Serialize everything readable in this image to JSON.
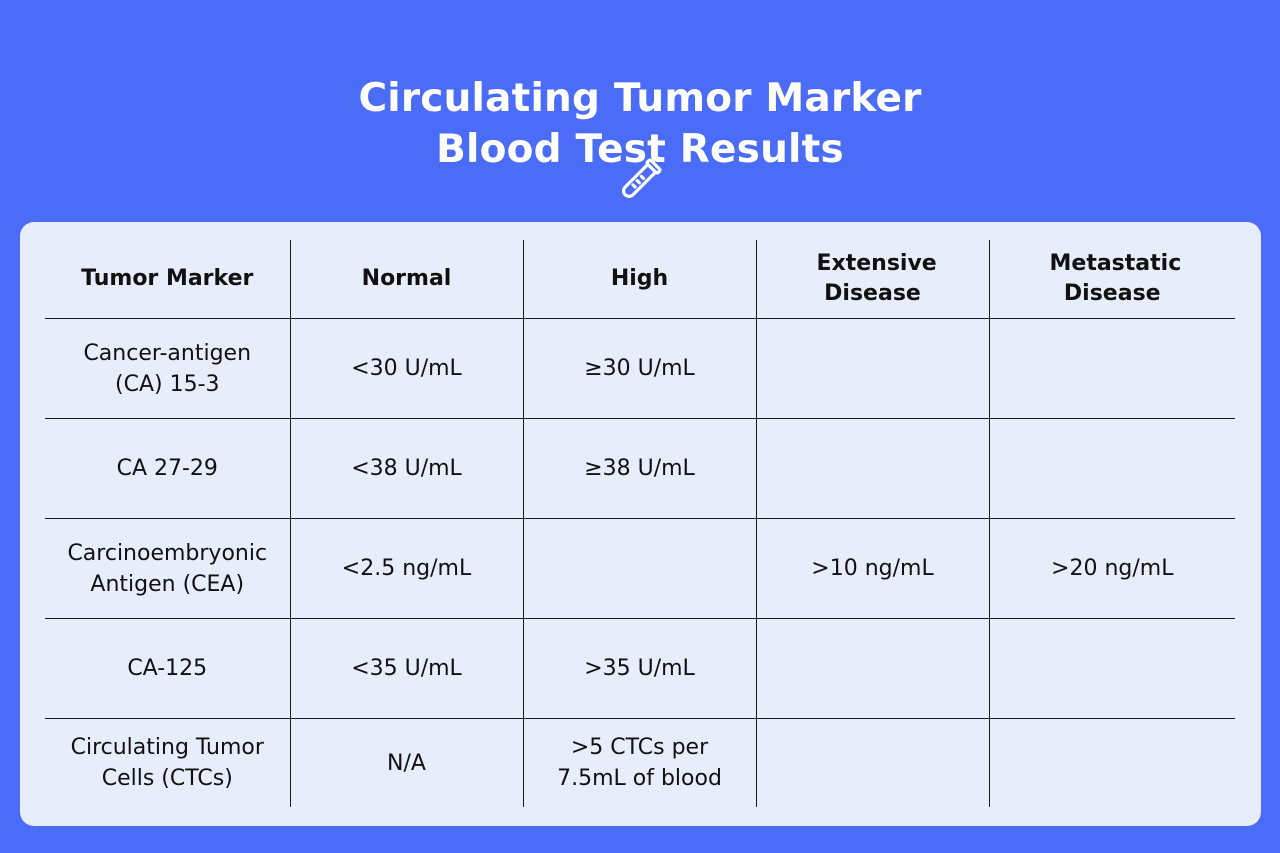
{
  "header": {
    "title_line1": "Circulating Tumor Marker",
    "title_line2": "Blood Test Results",
    "icon": "test-tube-icon"
  },
  "table": {
    "columns": [
      "Tumor Marker",
      "Normal",
      "High",
      "Extensive Disease",
      "Metastatic Disease"
    ],
    "rows": [
      [
        "Cancer-antigen (CA) 15-3",
        "<30 U/mL",
        "≥30 U/mL",
        "",
        ""
      ],
      [
        "CA 27-29",
        "<38 U/mL",
        "≥38 U/mL",
        "",
        ""
      ],
      [
        "Carcinoembryonic Antigen (CEA)",
        "<2.5 ng/mL",
        "",
        ">10 ng/mL",
        ">20 ng/mL"
      ],
      [
        "CA-125",
        "<35 U/mL",
        ">35 U/mL",
        "",
        ""
      ],
      [
        "Circulating Tumor Cells (CTCs)",
        "N/A",
        ">5 CTCs per 7.5mL of blood",
        "",
        ""
      ]
    ]
  },
  "colors": {
    "background": "#4A6CF7",
    "card": "#E8EDFB",
    "text": "#111111",
    "title": "#FFFFFF"
  }
}
